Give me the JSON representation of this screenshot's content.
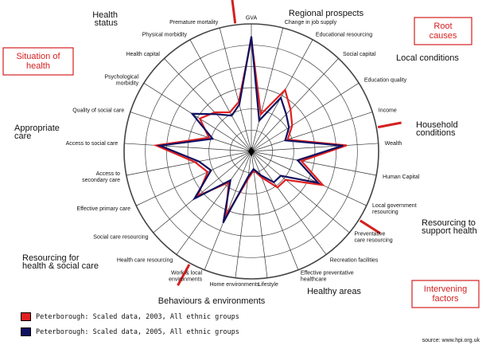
{
  "chart_data": {
    "type": "radar",
    "axes": [
      "GVA",
      "Change in job supply",
      "Educational resourcing",
      "Social capital",
      "Education quality",
      "Income",
      "Wealth",
      "Human Capital",
      "Local government resourcing",
      "Preventative care resourcing",
      "Recreation facilities",
      "Effective preventative healthcare",
      "Lifestyle",
      "Home environments",
      "Work & local environments",
      "Health care resourcing",
      "Social care resourcing",
      "Effective primary care",
      "Access to secondary care",
      "Access to social care",
      "Quality of social care",
      "Psychological morbidity",
      "Health capital",
      "Physical morbidity",
      "Premature mortality"
    ],
    "rings": 6,
    "rmax": 1.0,
    "series": [
      {
        "name": "Peterborough: Scaled data, 2003, All ethnic groups",
        "color": "#e02020",
        "values": [
          0.88,
          0.3,
          0.55,
          0.45,
          0.38,
          0.3,
          0.75,
          0.4,
          0.62,
          0.35,
          0.35,
          0.22,
          0.15,
          0.22,
          0.55,
          0.3,
          0.55,
          0.38,
          0.45,
          0.75,
          0.35,
          0.48,
          0.42,
          0.35,
          0.4
        ]
      },
      {
        "name": "Peterborough: Scaled data, 2005, All ethnic groups",
        "color": "#101060",
        "values": [
          0.9,
          0.25,
          0.48,
          0.4,
          0.35,
          0.28,
          0.72,
          0.37,
          0.58,
          0.3,
          0.3,
          0.2,
          0.14,
          0.2,
          0.6,
          0.28,
          0.58,
          0.35,
          0.42,
          0.72,
          0.32,
          0.55,
          0.4,
          0.32,
          0.38
        ]
      }
    ],
    "group_labels": [
      "Health status",
      "Regional prospects",
      "Local conditions",
      "Household conditions",
      "Resourcing to support health",
      "Healthy areas",
      "Behaviours & environments",
      "Resourcing for health & social care",
      "Appropriate care"
    ],
    "boxed_labels": [
      "Situation of health",
      "Root causes",
      "Intervening factors"
    ],
    "source": "source: www.hpi.org.uk"
  }
}
